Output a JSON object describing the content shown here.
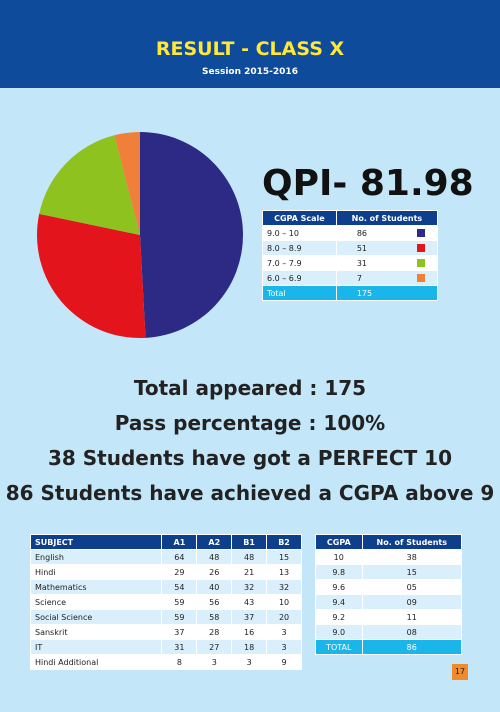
{
  "header": {
    "title": "RESULT - CLASS X",
    "subtitle": "Session 2015-2016"
  },
  "chart_data": {
    "type": "pie",
    "categories": [
      "9.0 – 10",
      "8.0 – 8.9",
      "7.0 – 7.9",
      "6.0 – 6.9"
    ],
    "values": [
      86,
      51,
      31,
      7
    ],
    "colors": [
      "#2d2a86",
      "#e3141c",
      "#8dc21f",
      "#f07f3a"
    ]
  },
  "qpi": "QPI- 81.98",
  "legend_table": {
    "headers": [
      "CGPA Scale",
      "No. of Students"
    ],
    "total": [
      "Total",
      "175"
    ]
  },
  "summary": [
    "Total appeared : 175",
    "Pass percentage : 100%",
    "38 Students have got a PERFECT 10",
    "86 Students have achieved a CGPA above 9"
  ],
  "subject_table": {
    "headers": [
      "SUBJECT",
      "A1",
      "A2",
      "B1",
      "B2"
    ],
    "rows": [
      [
        "English",
        "64",
        "48",
        "48",
        "15"
      ],
      [
        "Hindi",
        "29",
        "26",
        "21",
        "13"
      ],
      [
        "Mathematics",
        "54",
        "40",
        "32",
        "32"
      ],
      [
        "Science",
        "59",
        "56",
        "43",
        "10"
      ],
      [
        "Social Science",
        "59",
        "58",
        "37",
        "20"
      ],
      [
        "Sanskrit",
        "37",
        "28",
        "16",
        "3"
      ],
      [
        "IT",
        "31",
        "27",
        "18",
        "3"
      ],
      [
        "Hindi Additional",
        "8",
        "3",
        "3",
        "9"
      ]
    ]
  },
  "cgpa_table": {
    "headers": [
      "CGPA",
      "No. of Students"
    ],
    "rows": [
      [
        "10",
        "38"
      ],
      [
        "9.8",
        "15"
      ],
      [
        "9.6",
        "05"
      ],
      [
        "9.4",
        "09"
      ],
      [
        "9.2",
        "11"
      ],
      [
        "9.0",
        "08"
      ]
    ],
    "total": [
      "TOTAL",
      "86"
    ]
  },
  "page_number": "17"
}
